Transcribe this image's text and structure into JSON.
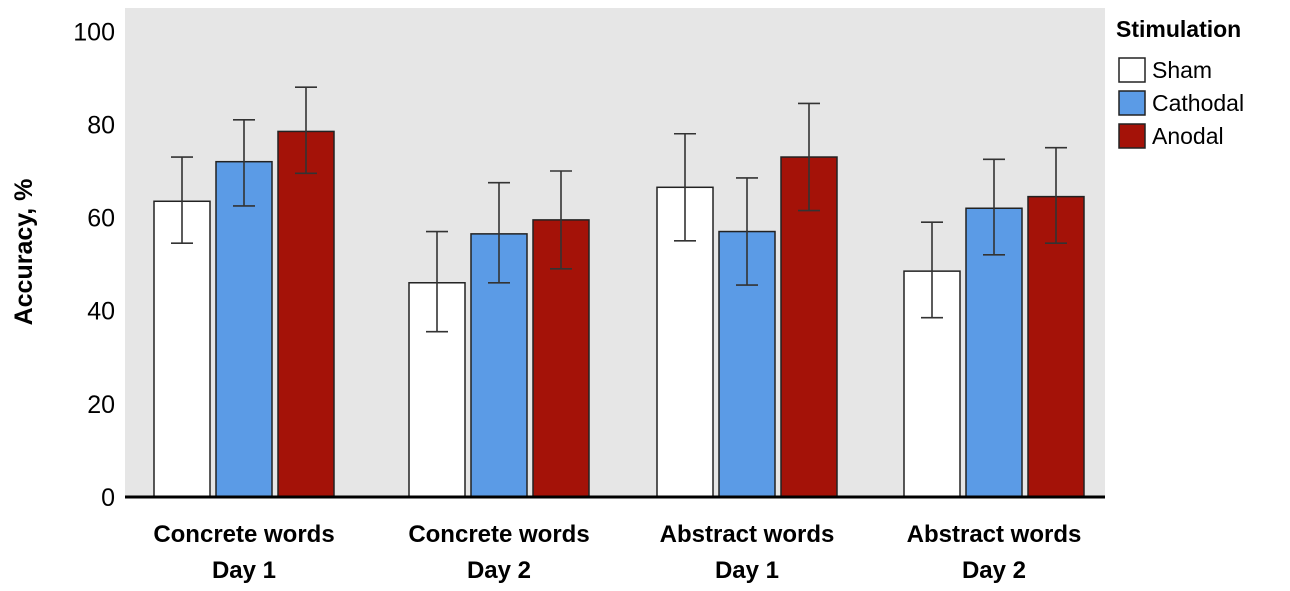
{
  "chart_data": {
    "type": "bar",
    "ylabel": "Accuracy, %",
    "ylim": [
      0,
      105
    ],
    "yticks": [
      "0",
      "20",
      "40",
      "60",
      "80",
      "100"
    ],
    "categories": [
      [
        "Concrete words",
        "Day 1"
      ],
      [
        "Concrete words",
        "Day 2"
      ],
      [
        "Abstract words",
        "Day 1"
      ],
      [
        "Abstract words",
        "Day 2"
      ]
    ],
    "legend": {
      "title": "Stimulation",
      "position": "top-right"
    },
    "series": [
      {
        "name": "Sham",
        "color": "#ffffff",
        "values": [
          63.5,
          46.0,
          66.5,
          48.5
        ],
        "err_low": [
          54.5,
          35.5,
          55.0,
          38.5
        ],
        "err_high": [
          73.0,
          57.0,
          78.0,
          59.0
        ]
      },
      {
        "name": "Cathodal",
        "color": "#5b9be6",
        "values": [
          72.0,
          56.5,
          57.0,
          62.0
        ],
        "err_low": [
          62.5,
          46.0,
          45.5,
          52.0
        ],
        "err_high": [
          81.0,
          67.5,
          68.5,
          72.5
        ]
      },
      {
        "name": "Anodal",
        "color": "#a41208",
        "values": [
          78.5,
          59.5,
          73.0,
          64.5
        ],
        "err_low": [
          69.5,
          49.0,
          61.5,
          54.5
        ],
        "err_high": [
          88.0,
          70.0,
          84.5,
          75.0
        ]
      }
    ],
    "background": "#e6e6e6",
    "grid": false
  }
}
